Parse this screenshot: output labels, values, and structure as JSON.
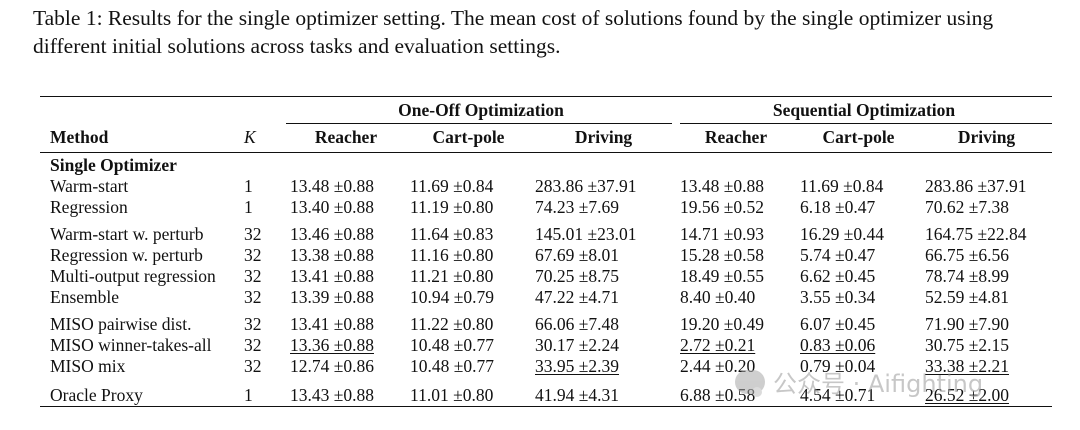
{
  "caption": "Table 1: Results for the single optimizer setting. The mean cost of solutions found by the single optimizer using different initial solutions across tasks and evaluation settings.",
  "groups": {
    "one_off": "One-Off Optimization",
    "sequential": "Sequential Optimization"
  },
  "columns": {
    "method": "Method",
    "k": "K",
    "reacher": "Reacher",
    "cartpole": "Cart-pole",
    "driving": "Driving"
  },
  "section": "Single Optimizer",
  "rows": [
    {
      "method": "Warm-start",
      "k": "1",
      "v": [
        "13.48 ±0.88",
        "11.69 ±0.84",
        "283.86 ±37.91",
        "13.48 ±0.88",
        "11.69 ±0.84",
        "283.86 ±37.91"
      ]
    },
    {
      "method": "Regression",
      "k": "1",
      "v": [
        "13.40 ±0.88",
        "11.19 ±0.80",
        "74.23 ±7.69",
        "19.56 ±0.52",
        "6.18 ±0.47",
        "70.62 ±7.38"
      ]
    },
    {
      "method": "Warm-start w. perturb",
      "k": "32",
      "v": [
        "13.46 ±0.88",
        "11.64 ±0.83",
        "145.01 ±23.01",
        "14.71 ±0.93",
        "16.29 ±0.44",
        "164.75 ±22.84"
      ]
    },
    {
      "method": "Regression w. perturb",
      "k": "32",
      "v": [
        "13.38 ±0.88",
        "11.16 ±0.80",
        "67.69 ±8.01",
        "15.28 ±0.58",
        "5.74 ±0.47",
        "66.75 ±6.56"
      ]
    },
    {
      "method": "Multi-output regression",
      "k": "32",
      "v": [
        "13.41 ±0.88",
        "11.21 ±0.80",
        "70.25 ±8.75",
        "18.49 ±0.55",
        "6.62 ±0.45",
        "78.74 ±8.99"
      ]
    },
    {
      "method": "Ensemble",
      "k": "32",
      "v": [
        "13.39 ±0.88",
        "10.94 ±0.79",
        "47.22 ±4.71",
        "8.40 ±0.40",
        "3.55 ±0.34",
        "52.59 ±4.81"
      ]
    },
    {
      "method": "MISO pairwise dist.",
      "k": "32",
      "v": [
        "13.41 ±0.88",
        "11.22 ±0.80",
        "66.06 ±7.48",
        "19.20 ±0.49",
        "6.07 ±0.45",
        "71.90 ±7.90"
      ]
    },
    {
      "method": "MISO winner-takes-all",
      "k": "32",
      "v": [
        "13.36 ±0.88",
        "10.48 ±0.77",
        "30.17 ±2.24",
        "2.72 ±0.21",
        "0.83 ±0.06",
        "30.75 ±2.15"
      ]
    },
    {
      "method": "MISO mix",
      "k": "32",
      "v": [
        "12.74 ±0.86",
        "10.48 ±0.77",
        "33.95 ±2.39",
        "2.44 ±0.20",
        "0.79 ±0.04",
        "33.38 ±2.21"
      ]
    },
    {
      "method": "Oracle Proxy",
      "k": "1",
      "v": [
        "13.43 ±0.88",
        "11.01 ±0.80",
        "41.94 ±4.31",
        "6.88 ±0.58",
        "4.54 ±0.71",
        "26.52 ±2.00"
      ]
    }
  ],
  "watermark": {
    "icon": "wechat-icon",
    "text": "公众号 · Aifighting"
  }
}
